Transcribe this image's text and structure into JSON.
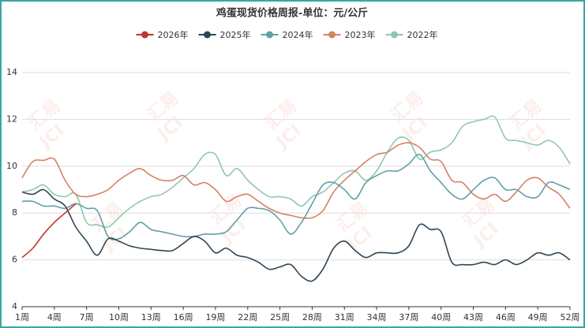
{
  "chart_data": {
    "type": "line",
    "title": "鸡蛋现货价格周报-单位：元/公斤",
    "watermark": [
      "汇易",
      "JCI"
    ],
    "categories": [
      "1周",
      null,
      null,
      "4周",
      null,
      null,
      "7周",
      null,
      null,
      "10周",
      null,
      null,
      "13周",
      null,
      null,
      "16周",
      null,
      null,
      "19周",
      null,
      null,
      "22周",
      null,
      null,
      "25周",
      null,
      null,
      "28周",
      null,
      null,
      "31周",
      null,
      null,
      "34周",
      null,
      null,
      "37周",
      null,
      null,
      "40周",
      null,
      null,
      "43周",
      null,
      null,
      "46周",
      null,
      null,
      "49周",
      null,
      null,
      "52周"
    ],
    "ylim": [
      4,
      14
    ],
    "yticks": [
      4,
      6,
      8,
      10,
      12,
      14
    ],
    "grid": true,
    "smooth": true,
    "legend": "top",
    "series": [
      {
        "name": "2026年",
        "color": "#c23531",
        "values": [
          6.1,
          6.5,
          7.1,
          7.6,
          8.0,
          8.4,
          null,
          null,
          null,
          null,
          null,
          null,
          null,
          null,
          null,
          null,
          null,
          null,
          null,
          null,
          null,
          null,
          null,
          null,
          null,
          null,
          null,
          null,
          null,
          null,
          null,
          null,
          null,
          null,
          null,
          null,
          null,
          null,
          null,
          null,
          null,
          null,
          null,
          null,
          null,
          null,
          null,
          null,
          null,
          null,
          null,
          null
        ]
      },
      {
        "name": "2025年",
        "color": "#2f4554",
        "values": [
          8.9,
          8.8,
          9.0,
          8.6,
          8.3,
          7.4,
          6.8,
          6.2,
          6.9,
          6.8,
          6.6,
          6.5,
          6.45,
          6.4,
          6.4,
          6.7,
          7.0,
          6.8,
          6.3,
          6.5,
          6.2,
          6.1,
          5.9,
          5.6,
          5.7,
          5.8,
          5.3,
          5.1,
          5.6,
          6.5,
          6.8,
          6.4,
          6.1,
          6.3,
          6.3,
          6.3,
          6.6,
          7.5,
          7.3,
          7.2,
          5.9,
          5.8,
          5.8,
          5.9,
          5.8,
          6.0,
          5.8,
          6.0,
          6.3,
          6.2,
          6.3,
          6.0
        ]
      },
      {
        "name": "2024年",
        "color": "#61a0a8",
        "values": [
          8.5,
          8.5,
          8.3,
          8.3,
          8.2,
          8.4,
          8.2,
          8.1,
          7.0,
          6.9,
          7.2,
          7.6,
          7.3,
          7.2,
          7.1,
          7.0,
          7.0,
          7.1,
          7.1,
          7.2,
          7.7,
          8.2,
          8.2,
          8.1,
          7.7,
          7.1,
          7.6,
          8.4,
          9.2,
          9.3,
          9.0,
          8.6,
          9.3,
          9.6,
          9.8,
          9.8,
          10.1,
          10.5,
          9.8,
          9.3,
          8.8,
          8.6,
          9.0,
          9.4,
          9.5,
          9.0,
          9.0,
          8.7,
          8.7,
          9.3,
          9.2,
          9.0
        ]
      },
      {
        "name": "2023年",
        "color": "#d48265",
        "values": [
          9.5,
          10.2,
          10.25,
          10.3,
          9.4,
          8.8,
          8.7,
          8.8,
          9.0,
          9.4,
          9.7,
          9.9,
          9.6,
          9.4,
          9.4,
          9.6,
          9.2,
          9.3,
          9.0,
          8.5,
          8.7,
          8.8,
          8.5,
          8.2,
          8.0,
          7.9,
          7.8,
          7.8,
          8.1,
          8.9,
          9.4,
          9.8,
          10.2,
          10.5,
          10.6,
          10.9,
          11.0,
          10.8,
          10.3,
          10.2,
          9.4,
          9.3,
          8.8,
          8.6,
          8.8,
          8.5,
          8.9,
          9.4,
          9.5,
          9.1,
          8.8,
          8.2
        ]
      },
      {
        "name": "2022年",
        "color": "#91c7ae",
        "values": [
          8.9,
          9.0,
          9.2,
          8.8,
          8.7,
          8.8,
          7.6,
          7.5,
          7.4,
          7.8,
          8.2,
          8.5,
          8.7,
          8.8,
          9.1,
          9.5,
          9.9,
          10.5,
          10.5,
          9.6,
          9.9,
          9.4,
          9.0,
          8.7,
          8.7,
          8.6,
          8.3,
          8.7,
          8.9,
          9.3,
          9.7,
          9.8,
          9.4,
          9.8,
          10.6,
          11.2,
          11.1,
          10.3,
          10.6,
          10.7,
          11.0,
          11.7,
          11.9,
          12.0,
          12.1,
          11.2,
          11.1,
          11.0,
          10.9,
          11.1,
          10.8,
          10.1
        ]
      }
    ]
  }
}
